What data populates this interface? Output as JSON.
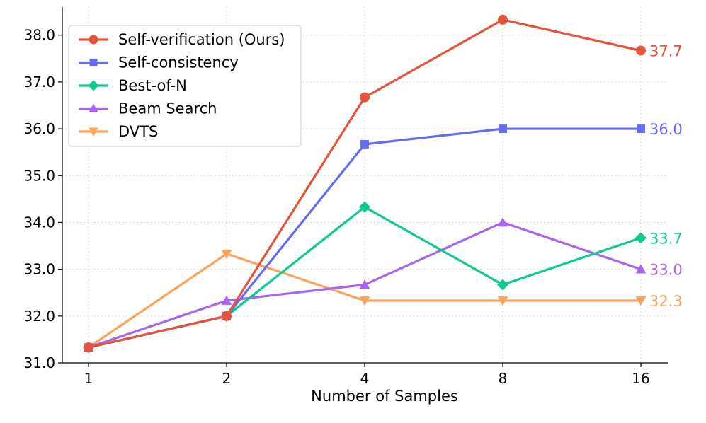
{
  "chart_data": {
    "type": "line",
    "title": "",
    "xlabel": "Number of Samples",
    "ylabel": "",
    "categories": [
      "1",
      "2",
      "4",
      "8",
      "16"
    ],
    "ylim": [
      31.0,
      38.6
    ],
    "yticks": [
      "31.0",
      "32.0",
      "33.0",
      "34.0",
      "35.0",
      "36.0",
      "37.0",
      "38.0"
    ],
    "grid": true,
    "legend_position": "top-left",
    "series": [
      {
        "name": "Self-verification (Ours)",
        "color": "#e5533a",
        "marker": "circle",
        "values": [
          31.33,
          32.0,
          36.67,
          38.33,
          37.67
        ],
        "end_label": "37.7"
      },
      {
        "name": "Self-consistency",
        "color": "#646cf0",
        "marker": "square",
        "values": [
          31.33,
          32.0,
          35.67,
          36.0,
          36.0
        ],
        "end_label": "36.0"
      },
      {
        "name": "Best-of-N",
        "color": "#10c990",
        "marker": "diamond",
        "values": [
          31.33,
          32.0,
          34.33,
          32.67,
          33.67
        ],
        "end_label": "33.7"
      },
      {
        "name": "Beam Search",
        "color": "#a865ee",
        "marker": "triangle-up",
        "values": [
          31.33,
          32.33,
          32.67,
          34.0,
          33.0
        ],
        "end_label": "33.0"
      },
      {
        "name": "DVTS",
        "color": "#fca35a",
        "marker": "triangle-down",
        "values": [
          31.33,
          33.33,
          32.33,
          32.33,
          32.33
        ],
        "end_label": "32.3"
      }
    ]
  }
}
